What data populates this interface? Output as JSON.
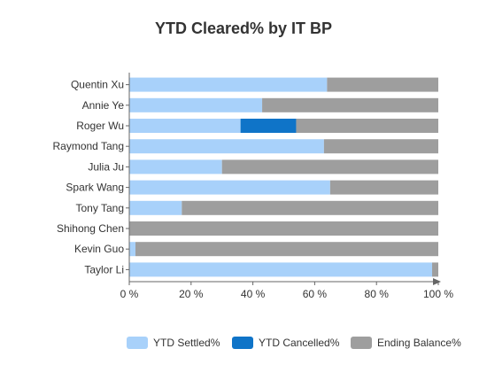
{
  "chart_data": {
    "type": "bar",
    "orientation": "horizontal",
    "stacked": "percent",
    "title": "YTD Cleared% by IT BP",
    "categories": [
      "Quentin Xu",
      "Annie Ye",
      "Roger Wu",
      "Raymond Tang",
      "Julia Ju",
      "Spark Wang",
      "Tony Tang",
      "Shihong Chen",
      "Kevin Guo",
      "Taylor Li"
    ],
    "series": [
      {
        "name": "YTD Settled%",
        "color": "#a8d1fa",
        "values": [
          64,
          43,
          36,
          63,
          30,
          65,
          17,
          0,
          2,
          98
        ]
      },
      {
        "name": "YTD Cancelled%",
        "color": "#0f74c8",
        "values": [
          0,
          0,
          18,
          0,
          0,
          0,
          0,
          0,
          0,
          0
        ]
      },
      {
        "name": "Ending Balance%",
        "color": "#9e9e9e",
        "values": [
          36,
          57,
          46,
          37,
          70,
          35,
          83,
          100,
          98,
          2
        ]
      }
    ],
    "xaxis": {
      "min": 0,
      "max": 100,
      "ticks": [
        "0 %",
        "20 %",
        "40 %",
        "60 %",
        "80 %",
        "100 %"
      ]
    },
    "grid": false,
    "legend": "bottom"
  }
}
